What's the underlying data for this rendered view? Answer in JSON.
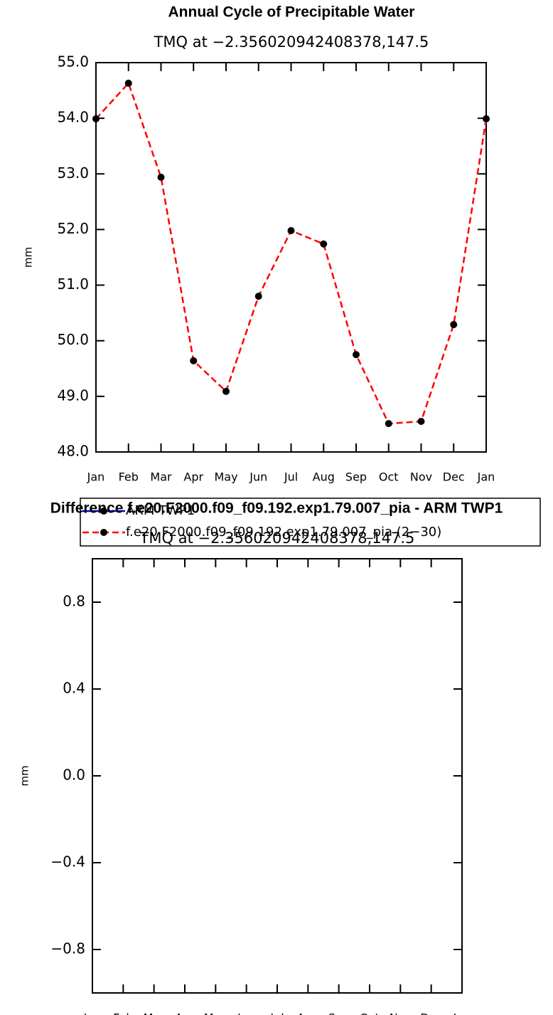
{
  "chart_data": [
    {
      "type": "line",
      "title": "Annual Cycle of Precipitable Water",
      "subtitle": "TMQ at −2.356020942408378,147.5",
      "ylabel": "mm",
      "categories": [
        "Jan",
        "Feb",
        "Mar",
        "Apr",
        "May",
        "Jun",
        "Jul",
        "Aug",
        "Sep",
        "Oct",
        "Nov",
        "Dec",
        "Jan"
      ],
      "ylim": [
        48,
        55
      ],
      "yticks": [
        {
          "value": 48,
          "label": "48.0"
        },
        {
          "value": 49,
          "label": "49.0"
        },
        {
          "value": 50,
          "label": "50.0"
        },
        {
          "value": 51,
          "label": "51.0"
        },
        {
          "value": 52,
          "label": "52.0"
        },
        {
          "value": 53,
          "label": "53.0"
        },
        {
          "value": 54,
          "label": "54.0"
        },
        {
          "value": 55,
          "label": "55.0"
        }
      ],
      "legend": "below",
      "series": [
        {
          "name": "ARM TWP1",
          "color": "#0000ff",
          "dashed": false,
          "values": [
            null,
            null,
            null,
            null,
            null,
            null,
            null,
            null,
            null,
            null,
            null,
            null,
            null
          ]
        },
        {
          "name": "f.e20.F2000.f09_f09.192.exp1.79.007_pia (2−30)",
          "color": "#ff0000",
          "dashed": true,
          "values": [
            53.99,
            54.63,
            52.94,
            49.64,
            49.09,
            50.8,
            51.98,
            51.74,
            49.75,
            48.51,
            48.55,
            50.29,
            53.99
          ]
        }
      ]
    },
    {
      "type": "line",
      "title": "Difference f.e20.F2000.f09_f09.192.exp1.79.007_pia - ARM TWP1",
      "subtitle": "TMQ at −2.356020942408378,147.5",
      "ylabel": "mm",
      "categories": [
        "Jan",
        "Feb",
        "Mar",
        "Apr",
        "May",
        "Jun",
        "Jul",
        "Aug",
        "Sep",
        "Oct",
        "Nov",
        "Dec",
        "Jan"
      ],
      "ylim": [
        -1,
        1
      ],
      "yticks": [
        {
          "value": -0.8,
          "label": "−0.8"
        },
        {
          "value": -0.4,
          "label": "−0.4"
        },
        {
          "value": 0,
          "label": "0.0"
        },
        {
          "value": 0.4,
          "label": "0.4"
        },
        {
          "value": 0.8,
          "label": "0.8"
        }
      ]
    }
  ]
}
